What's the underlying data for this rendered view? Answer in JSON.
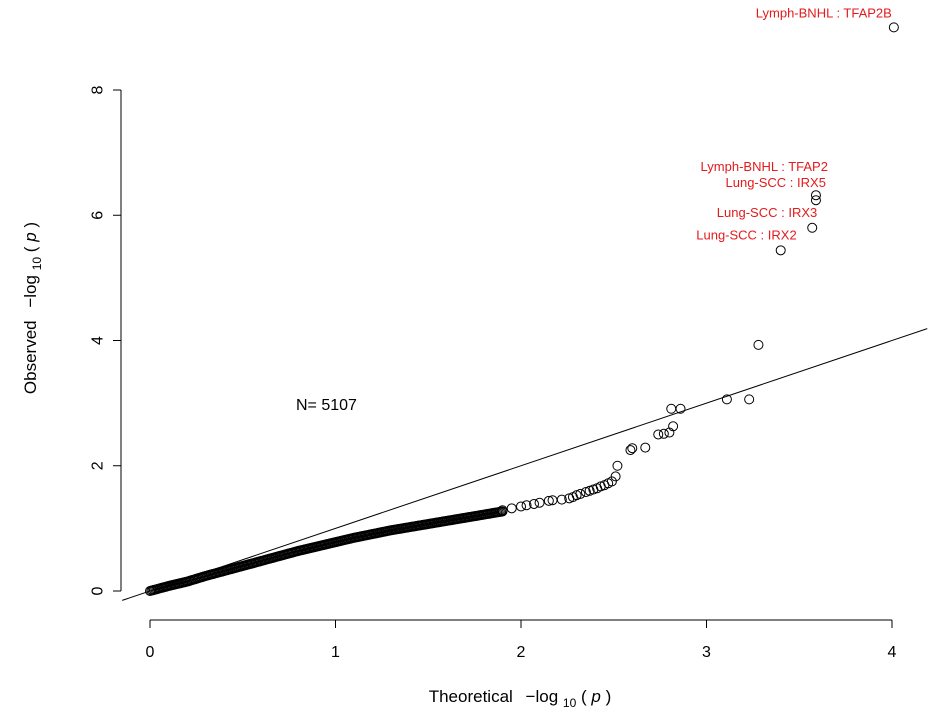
{
  "chart_data": {
    "type": "scatter",
    "xlabel": {
      "prefix": "Theoretical",
      "math_prefix": "−log",
      "subscript": "10",
      "open": "(",
      "var": "p",
      "close": ")"
    },
    "ylabel": {
      "prefix": "Observed",
      "math_prefix": "−log",
      "subscript": "10",
      "open": "(",
      "var": "p",
      "close": ")"
    },
    "xlim": [
      0,
      4
    ],
    "ylim": [
      0,
      8
    ],
    "x_ticks": [
      0,
      1,
      2,
      3,
      4
    ],
    "y_ticks": [
      0,
      2,
      4,
      6,
      8
    ],
    "x_tick_labels": [
      "0",
      "1",
      "2",
      "3",
      "4"
    ],
    "y_tick_labels": [
      "0",
      "2",
      "4",
      "6",
      "8"
    ],
    "annotation": "N= 5107",
    "reference_line": {
      "intercept": 0,
      "slope": 1
    },
    "highlight_color": "#e41a1c",
    "highlighted": [
      {
        "label": "Lymph-BNHL : TFAP2B",
        "x": 4.01,
        "y": 9.0
      },
      {
        "label": "Lymph-BNHL : TFAP2",
        "x": 3.59,
        "y": 6.32
      },
      {
        "label": "Lung-SCC : IRX5",
        "x": 3.59,
        "y": 6.24
      },
      {
        "label": "Lung-SCC : IRX3",
        "x": 3.57,
        "y": 5.8
      },
      {
        "label": "Lung-SCC : IRX2",
        "x": 3.4,
        "y": 5.44
      }
    ],
    "upper_points": [
      [
        3.28,
        3.93
      ],
      [
        3.23,
        3.06
      ],
      [
        3.11,
        3.06
      ],
      [
        2.86,
        2.91
      ],
      [
        2.81,
        2.91
      ],
      [
        2.82,
        2.63
      ],
      [
        2.8,
        2.53
      ],
      [
        2.77,
        2.51
      ],
      [
        2.74,
        2.5
      ],
      [
        2.67,
        2.29
      ],
      [
        2.6,
        2.28
      ],
      [
        2.59,
        2.25
      ],
      [
        2.52,
        2.0
      ],
      [
        2.51,
        1.83
      ],
      [
        2.49,
        1.75
      ],
      [
        2.47,
        1.72
      ],
      [
        2.45,
        1.69
      ],
      [
        2.43,
        1.67
      ],
      [
        2.41,
        1.64
      ],
      [
        2.39,
        1.62
      ],
      [
        2.37,
        1.6
      ],
      [
        2.35,
        1.58
      ],
      [
        2.32,
        1.55
      ],
      [
        2.3,
        1.53
      ],
      [
        2.28,
        1.5
      ],
      [
        2.26,
        1.48
      ],
      [
        2.22,
        1.46
      ],
      [
        2.17,
        1.45
      ],
      [
        2.15,
        1.44
      ],
      [
        2.1,
        1.41
      ],
      [
        2.07,
        1.39
      ],
      [
        2.03,
        1.37
      ],
      [
        2.0,
        1.35
      ],
      [
        1.95,
        1.32
      ],
      [
        1.9,
        1.29
      ]
    ],
    "trend": [
      [
        0.0,
        0.0
      ],
      [
        0.1,
        0.08
      ],
      [
        0.2,
        0.15
      ],
      [
        0.3,
        0.24
      ],
      [
        0.4,
        0.32
      ],
      [
        0.5,
        0.4
      ],
      [
        0.6,
        0.48
      ],
      [
        0.7,
        0.56
      ],
      [
        0.8,
        0.64
      ],
      [
        0.9,
        0.71
      ],
      [
        1.0,
        0.78
      ],
      [
        1.1,
        0.85
      ],
      [
        1.2,
        0.91
      ],
      [
        1.3,
        0.97
      ],
      [
        1.4,
        1.02
      ],
      [
        1.5,
        1.07
      ],
      [
        1.6,
        1.12
      ],
      [
        1.7,
        1.17
      ],
      [
        1.8,
        1.22
      ],
      [
        1.9,
        1.27
      ]
    ]
  }
}
